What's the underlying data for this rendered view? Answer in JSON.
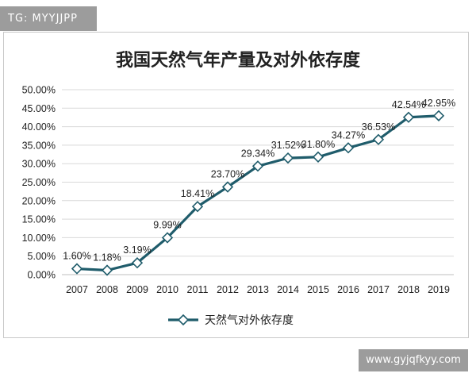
{
  "watermarks": {
    "top": "TG: MYYJJPP",
    "bottom": "www.gyjqfkyy.com"
  },
  "chart_data": {
    "type": "line",
    "title": "我国天然气年产量及对外依存度",
    "categories": [
      "2007",
      "2008",
      "2009",
      "2010",
      "2011",
      "2012",
      "2013",
      "2014",
      "2015",
      "2016",
      "2017",
      "2018",
      "2019"
    ],
    "series": [
      {
        "name": "天然气对外依存度",
        "values": [
          1.6,
          1.18,
          3.19,
          9.99,
          18.41,
          23.7,
          29.34,
          31.52,
          31.8,
          34.27,
          36.53,
          42.54,
          42.95
        ],
        "labels": [
          "1.60%",
          "1.18%",
          "3.19%",
          "9.99%",
          "18.41%",
          "23.70%",
          "29.34%",
          "31.52%",
          "31.80%",
          "34.27%",
          "36.53%",
          "42.54%",
          "42.95%"
        ]
      }
    ],
    "ylim": [
      0,
      50
    ],
    "yticks": [
      "0.00%",
      "5.00%",
      "10.00%",
      "15.00%",
      "20.00%",
      "25.00%",
      "30.00%",
      "35.00%",
      "40.00%",
      "45.00%",
      "50.00%"
    ],
    "grid": true,
    "legend": "bottom",
    "colors": {
      "line": "#1f5c6b",
      "marker_fill": "#ffffff",
      "grid": "#d9d9d9"
    }
  }
}
